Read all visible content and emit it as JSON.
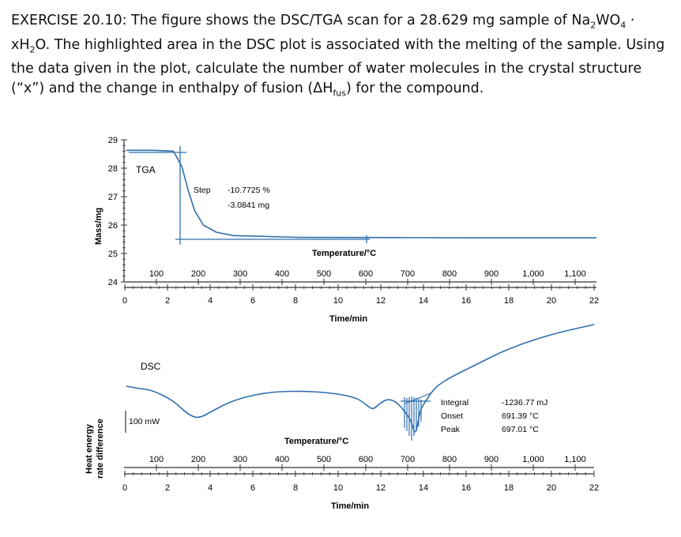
{
  "question": {
    "text_1": "EXERCISE 20.10: The figure shows the DSC/TGA scan for a 28.629 mg sample of Na",
    "formula_sub_2": "2",
    "formula_wo": "WO",
    "formula_sub_4": "4",
    "formula_dot": " · xH",
    "formula_sub_2b": "2",
    "text_2": "O. The highlighted area in the DSC plot is associated with the melting of the sample. Using the data given in the plot, calculate the number of water molecules in the crystal structure (“x”) and the change in enthalpy of fusion (ΔH",
    "fus_sub": "fus",
    "text_3": ") for the compound."
  },
  "chart_data": [
    {
      "type": "line",
      "title": "TGA",
      "ylabel": "Mass/mg",
      "xlabel": "Time/min",
      "x2label": "Temperature/°C",
      "ylim": [
        24,
        29
      ],
      "xlim": [
        0,
        22
      ],
      "yticks": [
        "24",
        "25",
        "26",
        "27",
        "28",
        "29"
      ],
      "xticks": [
        "0",
        "2",
        "4",
        "6",
        "8",
        "10",
        "12",
        "14",
        "16",
        "18",
        "20",
        "22"
      ],
      "x2ticks": [
        "100",
        "200",
        "300",
        "400",
        "500",
        "600",
        "700",
        "800",
        "900",
        "1,000",
        "1,100"
      ],
      "series": [
        {
          "x": [
            0,
            1.2,
            2.2,
            2.6,
            2.9,
            3.2,
            3.6,
            4.2,
            5.0,
            8.0,
            12.0,
            16.0,
            20.0,
            22.0
          ],
          "y": [
            28.63,
            28.63,
            28.6,
            28.05,
            27.2,
            26.5,
            26.0,
            25.75,
            25.63,
            25.57,
            25.56,
            25.55,
            25.55,
            25.55
          ]
        }
      ],
      "annotation": {
        "label": "Step",
        "value_percent": "-10.7725 %",
        "value_mass": "-3.0841 mg"
      },
      "colors": {
        "line": "#2f6fad",
        "axis": "#333333"
      }
    },
    {
      "type": "line",
      "title": "DSC",
      "ylabel_1": "Heat energy",
      "ylabel_2": "rate difference",
      "xlabel": "Time/min",
      "x2label": "Temperature/°C",
      "scale_label": "100 mW",
      "xlim": [
        0,
        22
      ],
      "xticks": [
        "0",
        "2",
        "4",
        "6",
        "8",
        "10",
        "12",
        "14",
        "16",
        "18",
        "20",
        "22"
      ],
      "x2ticks": [
        "100",
        "200",
        "300",
        "400",
        "500",
        "600",
        "700",
        "800",
        "900",
        "1,000",
        "1,100"
      ],
      "series": [
        {
          "x": [
            0,
            0.6,
            1.2,
            2.2,
            2.9,
            3.4,
            4.0,
            5.0,
            6.5,
            8.0,
            9.5,
            10.8,
            11.3,
            11.6,
            11.9,
            12.3,
            12.7,
            13.1,
            13.4,
            13.6,
            13.8,
            14.0,
            14.2,
            14.4,
            14.7,
            15.3,
            16.5,
            18.0,
            20.0,
            22.0
          ],
          "y": [
            -12,
            -15,
            -17,
            -30,
            -48,
            -53,
            -44,
            -30,
            -20,
            -18,
            -20,
            -26,
            -36,
            -42,
            -34,
            -28,
            -32,
            -44,
            -56,
            -76,
            -44,
            -34,
            -26,
            -18,
            -10,
            0,
            16,
            36,
            54,
            66
          ]
        }
      ],
      "annotation": {
        "integral_label": "Integral",
        "integral_value": "-1236.77 mJ",
        "onset_label": "Onset",
        "onset_value": "691.39 °C",
        "peak_label": "Peak",
        "peak_value": "697.01 °C"
      },
      "colors": {
        "line": "#2f6fad",
        "axis": "#333333"
      }
    }
  ]
}
